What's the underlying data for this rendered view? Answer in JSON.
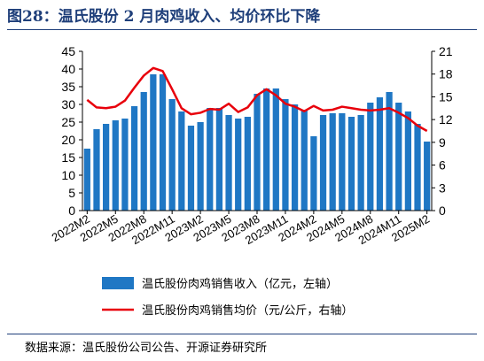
{
  "figure": {
    "title": "图28：温氏股份 2 月肉鸡收入、均价环比下降",
    "source": "数据来源：温氏股份公司公告、开源证券研究所"
  },
  "chart_data": {
    "type": "bar+line",
    "categories": [
      "2022M2",
      "2022M3",
      "2022M4",
      "2022M5",
      "2022M6",
      "2022M7",
      "2022M8",
      "2022M9",
      "2022M10",
      "2022M11",
      "2022M12",
      "2023M1",
      "2023M2",
      "2023M3",
      "2023M4",
      "2023M5",
      "2023M6",
      "2023M7",
      "2023M8",
      "2023M9",
      "2023M10",
      "2023M11",
      "2023M12",
      "2024M1",
      "2024M2",
      "2024M3",
      "2024M4",
      "2024M5",
      "2024M6",
      "2024M7",
      "2024M8",
      "2024M9",
      "2024M10",
      "2024M11",
      "2024M12",
      "2025M1",
      "2025M2"
    ],
    "xtick_labels": [
      "2022M2",
      "2022M5",
      "2022M8",
      "2022M11",
      "2023M2",
      "2023M5",
      "2023M8",
      "2023M11",
      "2024M2",
      "2024M5",
      "2024M8",
      "2024M11",
      "2025M2"
    ],
    "series": [
      {
        "name": "温氏股份肉鸡销售收入（亿元，左轴）",
        "type": "bar",
        "axis": "left",
        "color": "#1f77c4",
        "values": [
          17.5,
          23,
          24.5,
          25.5,
          26,
          29.5,
          33.5,
          38.5,
          38.5,
          31.5,
          28,
          24,
          25,
          29,
          29,
          27,
          26,
          26.5,
          33,
          34.5,
          34.5,
          31.5,
          30,
          28.5,
          21,
          27,
          27.5,
          27.5,
          26.5,
          27,
          30.5,
          32,
          33.5,
          30.5,
          28,
          24.5,
          19.5
        ]
      },
      {
        "name": "温氏股份肉鸡销售均价（元/公斤，右轴）",
        "type": "line",
        "axis": "right",
        "color": "#e8000b",
        "values": [
          14.6,
          13.6,
          13.5,
          13.7,
          14.5,
          16.2,
          17.8,
          18.8,
          18.4,
          16.0,
          13.5,
          12.7,
          12.9,
          13.4,
          13.3,
          14.1,
          13.0,
          13.6,
          15.2,
          16.0,
          15.2,
          14.1,
          13.7,
          13.1,
          13.8,
          13.2,
          13.3,
          13.7,
          13.5,
          13.3,
          13.2,
          13.3,
          13.5,
          12.9,
          12.2,
          11.2,
          10.5
        ]
      }
    ],
    "ylim_left": [
      0,
      45
    ],
    "yticks_left": [
      0,
      5,
      10,
      15,
      20,
      25,
      30,
      35,
      40,
      45
    ],
    "ylim_right": [
      0,
      21
    ],
    "yticks_right": [
      0,
      3,
      6,
      9,
      12,
      15,
      18,
      21
    ],
    "grid": false,
    "legend": "bottom"
  }
}
